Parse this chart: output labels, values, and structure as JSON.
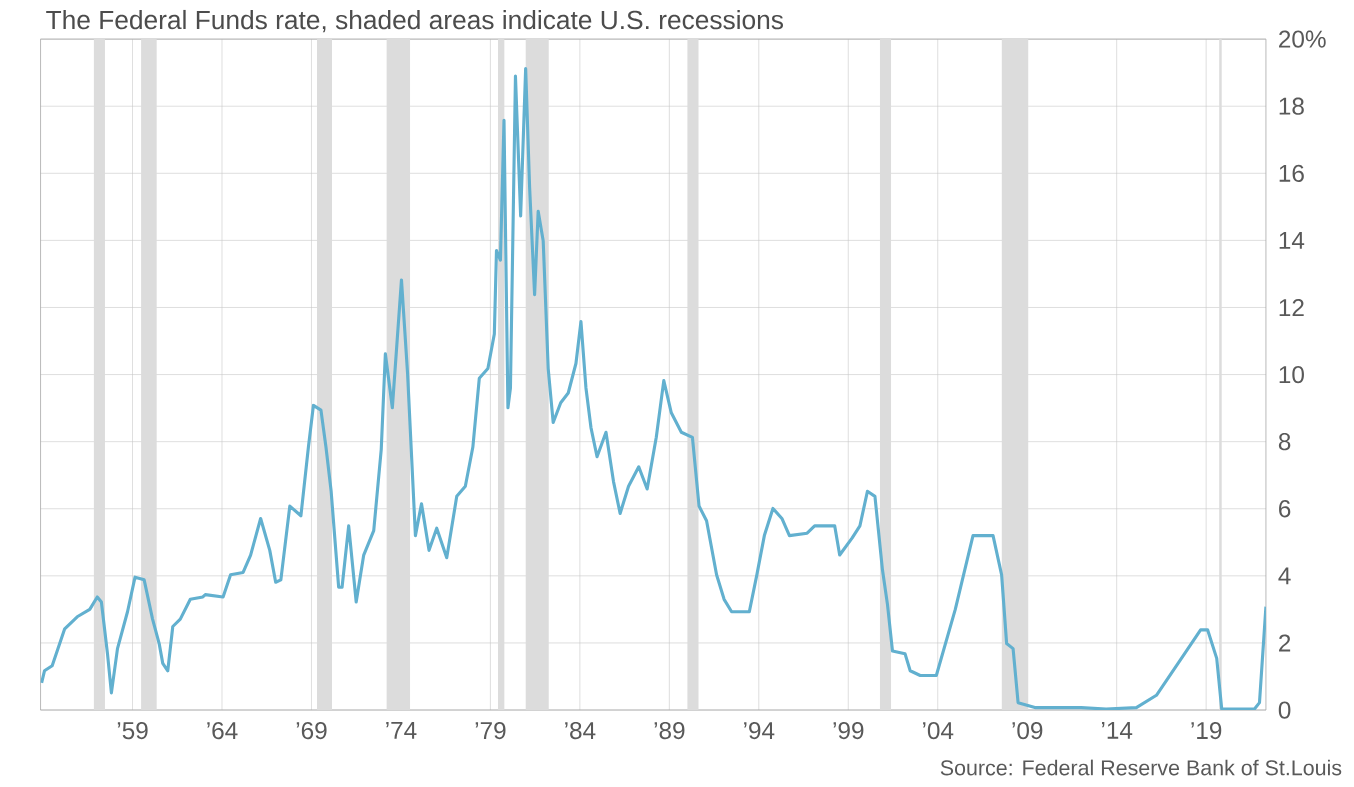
{
  "chart_data": {
    "type": "line",
    "title": "The Federal Funds rate, shaded areas indicate U.S. recessions",
    "annotations": [
      "Source: Federal Reserve Bank of St.Louis"
    ],
    "x": [
      1953.92,
      1954.08,
      1954.51,
      1955.21,
      1955.91,
      1956.61,
      1957.03,
      1957.26,
      1957.6,
      1957.82,
      1958.16,
      1958.72,
      1959.14,
      1959.65,
      1960.12,
      1960.49,
      1960.69,
      1960.97,
      1961.25,
      1961.67,
      1962.23,
      1962.93,
      1963.07,
      1964.06,
      1964.48,
      1965.18,
      1965.6,
      1966.16,
      1966.67,
      1967.0,
      1967.29,
      1967.79,
      1968.41,
      1968.83,
      1969.11,
      1969.53,
      1969.81,
      1970.1,
      1970.52,
      1970.71,
      1971.08,
      1971.5,
      1971.92,
      1972.48,
      1972.9,
      1973.13,
      1973.52,
      1974.03,
      1974.37,
      1974.81,
      1975.15,
      1975.57,
      1976.0,
      1976.56,
      1977.12,
      1977.6,
      1978.02,
      1978.38,
      1978.86,
      1979.22,
      1979.34,
      1979.56,
      1979.76,
      1979.98,
      1980.12,
      1980.4,
      1980.69,
      1980.97,
      1981.19,
      1981.47,
      1981.67,
      1981.95,
      1982.23,
      1982.51,
      1982.93,
      1983.35,
      1983.78,
      1984.06,
      1984.34,
      1984.62,
      1984.96,
      1985.46,
      1985.88,
      1986.25,
      1986.72,
      1987.29,
      1987.76,
      1988.27,
      1988.69,
      1989.11,
      1989.67,
      1990.29,
      1990.66,
      1991.08,
      1991.64,
      1992.06,
      1992.48,
      1993.47,
      1993.89,
      1994.31,
      1994.79,
      1995.29,
      1995.71,
      1996.7,
      1997.12,
      1998.24,
      1998.52,
      1999.22,
      1999.65,
      2000.07,
      2000.49,
      2000.91,
      2001.19,
      2001.47,
      2002.17,
      2002.46,
      2003.02,
      2003.92,
      2004.98,
      2005.97,
      2007.09,
      2007.57,
      2007.85,
      2008.21,
      2008.49,
      2009.48,
      2010.88,
      2012.01,
      2013.41,
      2015.1,
      2016.22,
      2017.06,
      2017.9,
      2018.69,
      2019.08,
      2019.59,
      2019.87,
      2021.7,
      2021.98,
      2022.34
    ],
    "series": [
      {
        "color": "#62b0cf",
        "values": [
          0.81,
          1.17,
          1.32,
          2.42,
          2.78,
          3.0,
          3.37,
          3.22,
          1.68,
          0.51,
          1.83,
          2.93,
          3.96,
          3.88,
          2.71,
          1.98,
          1.39,
          1.17,
          2.49,
          2.71,
          3.3,
          3.37,
          3.44,
          3.37,
          4.03,
          4.1,
          4.62,
          5.71,
          4.76,
          3.81,
          3.88,
          6.08,
          5.79,
          7.84,
          9.08,
          8.94,
          7.84,
          6.52,
          3.66,
          3.66,
          5.49,
          3.22,
          4.62,
          5.35,
          7.77,
          10.62,
          9.01,
          12.82,
          10.04,
          5.2,
          6.15,
          4.76,
          5.42,
          4.54,
          6.37,
          6.67,
          7.84,
          9.89,
          10.18,
          11.21,
          13.7,
          13.41,
          17.58,
          9.01,
          9.6,
          18.9,
          14.73,
          19.12,
          15.6,
          12.38,
          14.87,
          13.99,
          10.18,
          8.57,
          9.16,
          9.45,
          10.33,
          11.58,
          9.6,
          8.42,
          7.55,
          8.28,
          6.81,
          5.86,
          6.67,
          7.25,
          6.59,
          8.13,
          9.82,
          8.86,
          8.28,
          8.13,
          6.08,
          5.64,
          4.03,
          3.3,
          2.93,
          2.93,
          4.03,
          5.2,
          6.01,
          5.71,
          5.2,
          5.27,
          5.49,
          5.49,
          4.62,
          5.13,
          5.49,
          6.52,
          6.37,
          4.18,
          3.15,
          1.76,
          1.68,
          1.17,
          1.03,
          1.03,
          3.0,
          5.2,
          5.2,
          4.03,
          1.98,
          1.83,
          0.22,
          0.07,
          0.07,
          0.07,
          0.03,
          0.07,
          0.44,
          1.1,
          1.76,
          2.39,
          2.39,
          1.54,
          0.03,
          0.03,
          0.22,
          3.08
        ]
      }
    ],
    "xlim": [
      1953.86,
      2022.34
    ],
    "ylim": [
      0,
      20
    ],
    "xticks": [
      {
        "value": 1959,
        "label": "’59"
      },
      {
        "value": 1964,
        "label": "’64"
      },
      {
        "value": 1969,
        "label": "’69"
      },
      {
        "value": 1974,
        "label": "’74"
      },
      {
        "value": 1979,
        "label": "’79"
      },
      {
        "value": 1984,
        "label": "’84"
      },
      {
        "value": 1989,
        "label": "’89"
      },
      {
        "value": 1994,
        "label": "’94"
      },
      {
        "value": 1999,
        "label": "’99"
      },
      {
        "value": 2004,
        "label": "’04"
      },
      {
        "value": 2009,
        "label": "’09"
      },
      {
        "value": 2014,
        "label": "’14"
      },
      {
        "value": 2019,
        "label": "’19"
      }
    ],
    "yticks": [
      0,
      2,
      4,
      6,
      8,
      10,
      12,
      14,
      16,
      18,
      {
        "value": 20,
        "label": "20%"
      }
    ],
    "bands": [
      {
        "axis": "x",
        "from": 1956.84,
        "to": 1957.46,
        "color": "#dcdcdc"
      },
      {
        "axis": "x",
        "from": 1959.48,
        "to": 1960.35,
        "color": "#dcdcdc"
      },
      {
        "axis": "x",
        "from": 1969.31,
        "to": 1970.15,
        "color": "#dcdcdc"
      },
      {
        "axis": "x",
        "from": 1973.19,
        "to": 1974.51,
        "color": "#dcdcdc"
      },
      {
        "axis": "x",
        "from": 1979.42,
        "to": 1979.79,
        "color": "#dcdcdc"
      },
      {
        "axis": "x",
        "from": 1980.97,
        "to": 1982.26,
        "color": "#dcdcdc"
      },
      {
        "axis": "x",
        "from": 1990.01,
        "to": 1990.63,
        "color": "#dcdcdc"
      },
      {
        "axis": "x",
        "from": 2000.77,
        "to": 2001.39,
        "color": "#dcdcdc"
      },
      {
        "axis": "x",
        "from": 2007.57,
        "to": 2009.06,
        "color": "#dcdcdc"
      },
      {
        "axis": "x",
        "from": 2019.73,
        "to": 2019.87,
        "color": "#dcdcdc"
      }
    ],
    "grid": true
  }
}
